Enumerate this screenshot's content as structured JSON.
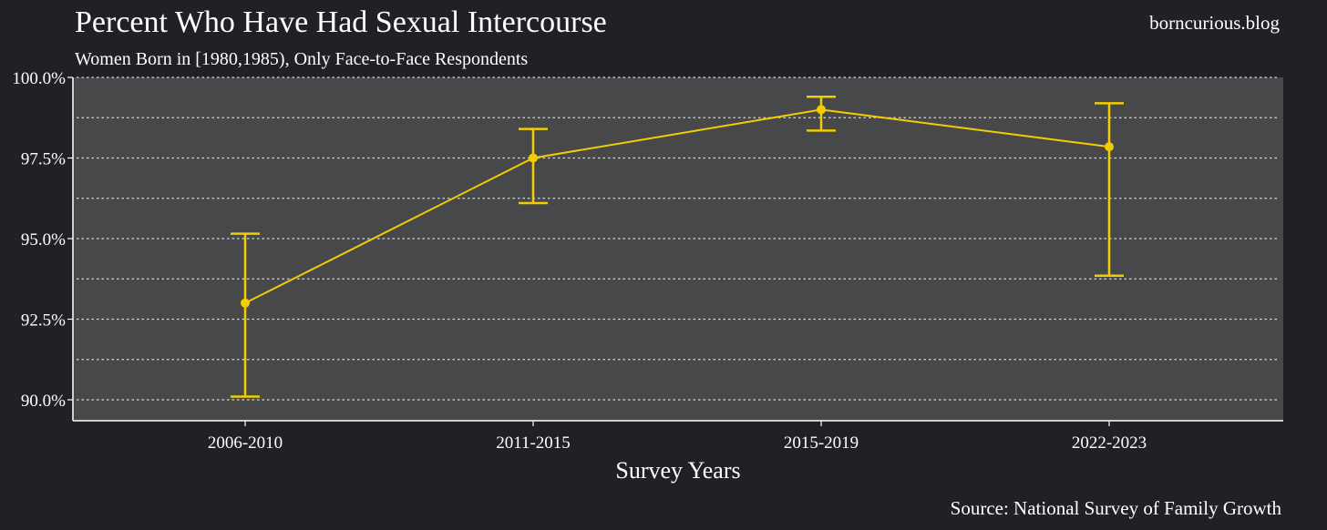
{
  "header": {
    "title": "Percent Who Have Had Sexual Intercourse",
    "subtitle": "Women Born in [1980,1985), Only Face-to-Face Respondents",
    "watermark": "borncurious.blog"
  },
  "footer": {
    "source": "Source: National Survey of Family Growth"
  },
  "colors": {
    "background": "#202124",
    "panel": "#47484a",
    "series": "#f2cd00",
    "text": "#ffffff",
    "grid": "#d8d8d8"
  },
  "chart_data": {
    "type": "line",
    "xlabel": "Survey Years",
    "ylabel": "",
    "categories": [
      "2006-2010",
      "2011-2015",
      "2015-2019",
      "2022-2023"
    ],
    "series": [
      {
        "values": [
          93.0,
          97.5,
          99.0,
          97.85
        ],
        "lower": [
          90.1,
          96.1,
          98.35,
          93.85
        ],
        "upper": [
          95.15,
          98.4,
          99.4,
          99.2
        ]
      }
    ],
    "ylim": [
      89.35,
      100.0
    ],
    "yticks": [
      90.0,
      92.5,
      95.0,
      97.5,
      100.0
    ],
    "ytick_labels": [
      "90.0%",
      "92.5%",
      "95.0%",
      "97.5%",
      "100.0%"
    ],
    "grid": true,
    "error_bars": true
  }
}
